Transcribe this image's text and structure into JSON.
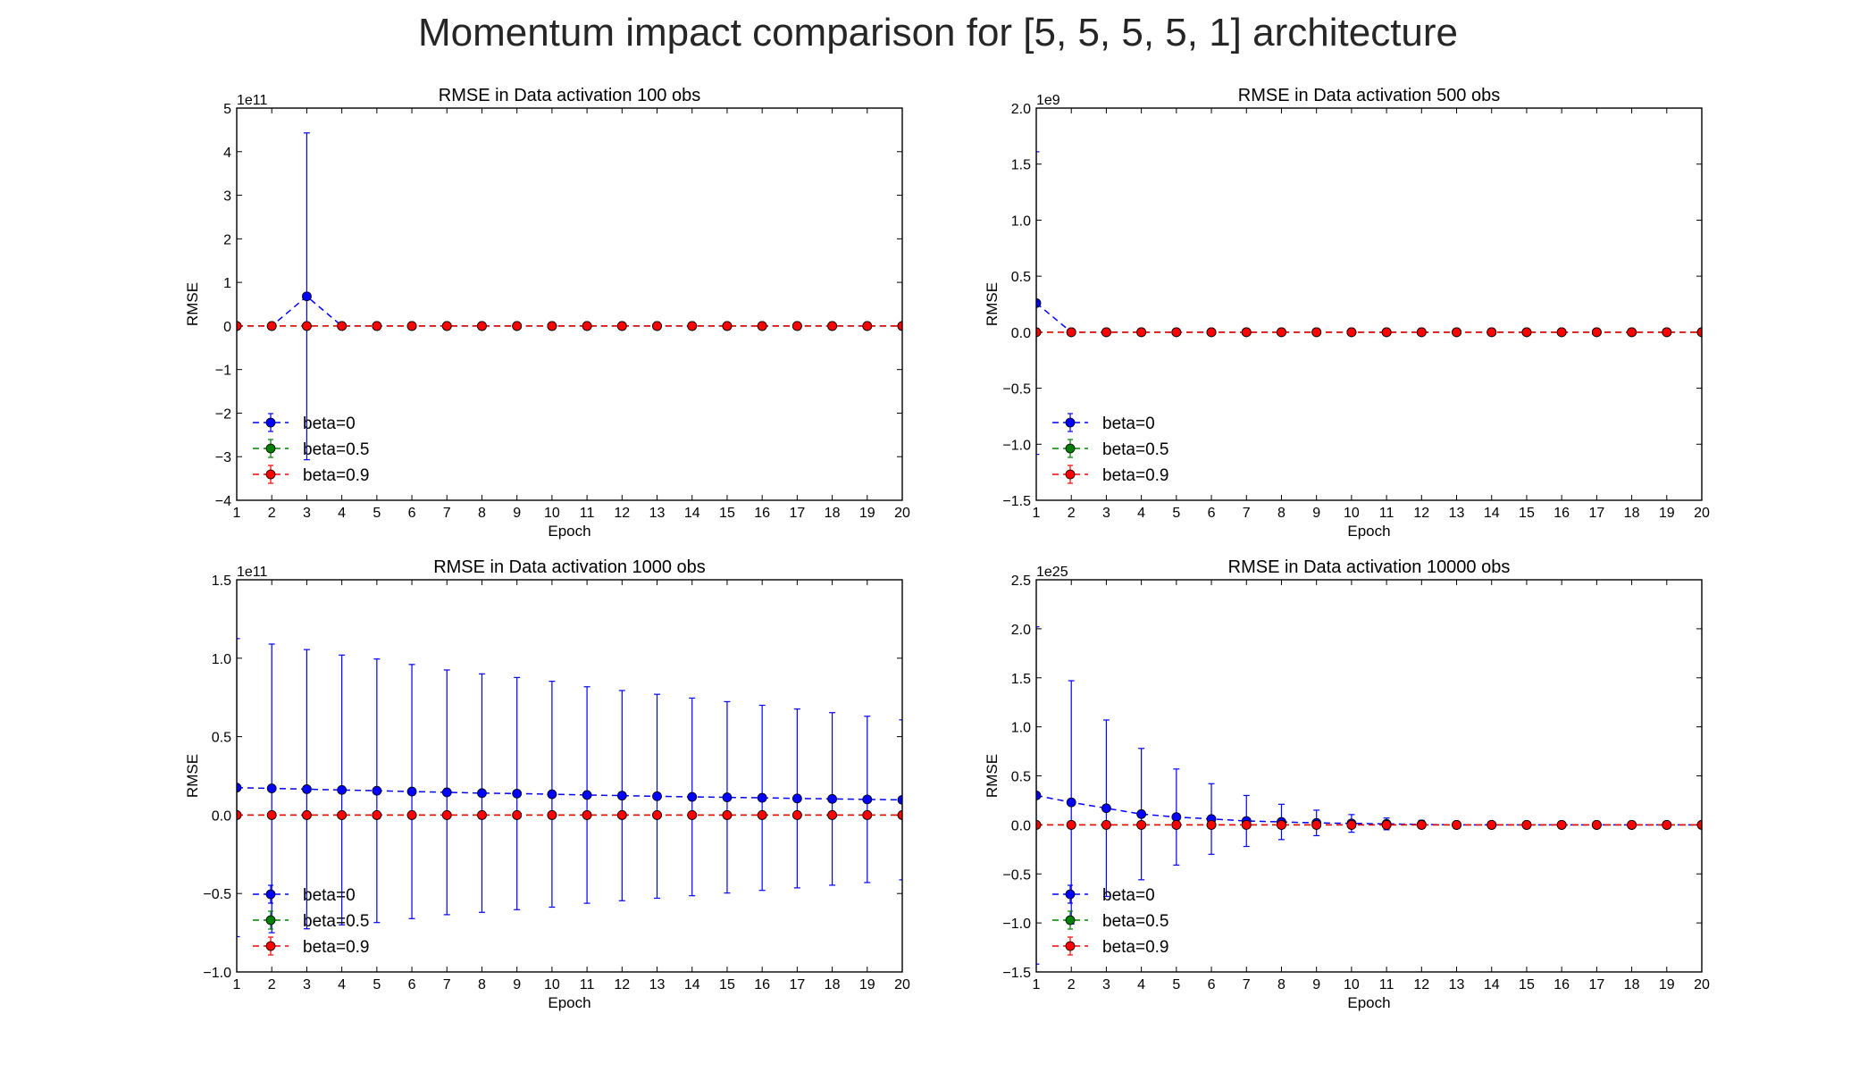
{
  "figure": {
    "title": "Momentum impact comparison for [5, 5, 5, 5, 1] architecture"
  },
  "colors": {
    "beta_0": "#0000ff",
    "beta_0_5": "#008000",
    "beta_0_9": "#ff0000",
    "frame": "#000000",
    "text": "#262626"
  },
  "chart_data": [
    {
      "type": "line",
      "title": "RMSE in Data activation 100 obs",
      "xlabel": "Epoch",
      "ylabel": "RMSE",
      "offset_text": "1e11",
      "x": [
        1,
        2,
        3,
        4,
        5,
        6,
        7,
        8,
        9,
        10,
        11,
        12,
        13,
        14,
        15,
        16,
        17,
        18,
        19,
        20
      ],
      "xlim": [
        1,
        20
      ],
      "ylim": [
        -4,
        5
      ],
      "yticks": [
        -4,
        -3,
        -2,
        -1,
        0,
        1,
        2,
        3,
        4,
        5
      ],
      "ytick_labels": [
        "−4",
        "−3",
        "−2",
        "−1",
        "0",
        "1",
        "2",
        "3",
        "4",
        "5"
      ],
      "grid": false,
      "legend_position": "lower-left",
      "series": [
        {
          "name": "beta=0",
          "color": "#0000ff",
          "values": [
            0,
            0,
            0.68,
            0,
            0,
            0,
            0,
            0,
            0,
            0,
            0,
            0,
            0,
            0,
            0,
            0,
            0,
            0,
            0,
            0
          ],
          "errors": [
            0,
            0,
            3.75,
            0,
            0,
            0,
            0,
            0,
            0,
            0,
            0,
            0,
            0,
            0,
            0,
            0,
            0,
            0,
            0,
            0
          ]
        },
        {
          "name": "beta=0.5",
          "color": "#008000",
          "values": [
            0,
            0,
            0,
            0,
            0,
            0,
            0,
            0,
            0,
            0,
            0,
            0,
            0,
            0,
            0,
            0,
            0,
            0,
            0,
            0
          ],
          "errors": [
            0,
            0,
            0,
            0,
            0,
            0,
            0,
            0,
            0,
            0,
            0,
            0,
            0,
            0,
            0,
            0,
            0,
            0,
            0,
            0
          ]
        },
        {
          "name": "beta=0.9",
          "color": "#ff0000",
          "values": [
            0,
            0,
            0,
            0,
            0,
            0,
            0,
            0,
            0,
            0,
            0,
            0,
            0,
            0,
            0,
            0,
            0,
            0,
            0,
            0
          ],
          "errors": [
            0,
            0,
            0,
            0,
            0,
            0,
            0,
            0,
            0,
            0,
            0,
            0,
            0,
            0,
            0,
            0,
            0,
            0,
            0,
            0
          ]
        }
      ]
    },
    {
      "type": "line",
      "title": "RMSE in Data activation 500 obs",
      "xlabel": "Epoch",
      "ylabel": "RMSE",
      "offset_text": "1e9",
      "x": [
        1,
        2,
        3,
        4,
        5,
        6,
        7,
        8,
        9,
        10,
        11,
        12,
        13,
        14,
        15,
        16,
        17,
        18,
        19,
        20
      ],
      "xlim": [
        1,
        20
      ],
      "ylim": [
        -1.5,
        2.0
      ],
      "yticks": [
        -1.5,
        -1.0,
        -0.5,
        0.0,
        0.5,
        1.0,
        1.5,
        2.0
      ],
      "ytick_labels": [
        "−1.5",
        "−1.0",
        "−0.5",
        "0.0",
        "0.5",
        "1.0",
        "1.5",
        "2.0"
      ],
      "grid": false,
      "legend_position": "lower-left",
      "series": [
        {
          "name": "beta=0",
          "color": "#0000ff",
          "values": [
            0.26,
            0,
            0,
            0,
            0,
            0,
            0,
            0,
            0,
            0,
            0,
            0,
            0,
            0,
            0,
            0,
            0,
            0,
            0,
            0
          ],
          "errors": [
            1.35,
            0,
            0,
            0,
            0,
            0,
            0,
            0,
            0,
            0,
            0,
            0,
            0,
            0,
            0,
            0,
            0,
            0,
            0,
            0
          ]
        },
        {
          "name": "beta=0.5",
          "color": "#008000",
          "values": [
            0,
            0,
            0,
            0,
            0,
            0,
            0,
            0,
            0,
            0,
            0,
            0,
            0,
            0,
            0,
            0,
            0,
            0,
            0,
            0
          ],
          "errors": [
            0,
            0,
            0,
            0,
            0,
            0,
            0,
            0,
            0,
            0,
            0,
            0,
            0,
            0,
            0,
            0,
            0,
            0,
            0,
            0
          ]
        },
        {
          "name": "beta=0.9",
          "color": "#ff0000",
          "values": [
            0,
            0,
            0,
            0,
            0,
            0,
            0,
            0,
            0,
            0,
            0,
            0,
            0,
            0,
            0,
            0,
            0,
            0,
            0,
            0
          ],
          "errors": [
            0,
            0,
            0,
            0,
            0,
            0,
            0,
            0,
            0,
            0,
            0,
            0,
            0,
            0,
            0,
            0,
            0,
            0,
            0,
            0
          ]
        }
      ]
    },
    {
      "type": "line",
      "title": "RMSE in Data activation 1000 obs",
      "xlabel": "Epoch",
      "ylabel": "RMSE",
      "offset_text": "1e11",
      "x": [
        1,
        2,
        3,
        4,
        5,
        6,
        7,
        8,
        9,
        10,
        11,
        12,
        13,
        14,
        15,
        16,
        17,
        18,
        19,
        20
      ],
      "xlim": [
        1,
        20
      ],
      "ylim": [
        -1.0,
        1.5
      ],
      "yticks": [
        -1.0,
        -0.5,
        0.0,
        0.5,
        1.0,
        1.5
      ],
      "ytick_labels": [
        "−1.0",
        "−0.5",
        "0.0",
        "0.5",
        "1.0",
        "1.5"
      ],
      "grid": false,
      "legend_position": "lower-left",
      "series": [
        {
          "name": "beta=0",
          "color": "#0000ff",
          "values": [
            0.175,
            0.17,
            0.165,
            0.16,
            0.155,
            0.15,
            0.145,
            0.14,
            0.137,
            0.133,
            0.128,
            0.124,
            0.12,
            0.116,
            0.113,
            0.11,
            0.106,
            0.103,
            0.1,
            0.097
          ],
          "errors": [
            0.95,
            0.92,
            0.89,
            0.86,
            0.84,
            0.81,
            0.78,
            0.76,
            0.74,
            0.72,
            0.69,
            0.67,
            0.65,
            0.63,
            0.61,
            0.59,
            0.57,
            0.55,
            0.53,
            0.51
          ]
        },
        {
          "name": "beta=0.5",
          "color": "#008000",
          "values": [
            0,
            0,
            0,
            0,
            0,
            0,
            0,
            0,
            0,
            0,
            0,
            0,
            0,
            0,
            0,
            0,
            0,
            0,
            0,
            0
          ],
          "errors": [
            0,
            0,
            0,
            0,
            0,
            0,
            0,
            0,
            0,
            0,
            0,
            0,
            0,
            0,
            0,
            0,
            0,
            0,
            0,
            0
          ]
        },
        {
          "name": "beta=0.9",
          "color": "#ff0000",
          "values": [
            0,
            0,
            0,
            0,
            0,
            0,
            0,
            0,
            0,
            0,
            0,
            0,
            0,
            0,
            0,
            0,
            0,
            0,
            0,
            0
          ],
          "errors": [
            0,
            0,
            0,
            0,
            0,
            0,
            0,
            0,
            0,
            0,
            0,
            0,
            0,
            0,
            0,
            0,
            0,
            0,
            0,
            0
          ]
        }
      ]
    },
    {
      "type": "line",
      "title": "RMSE in Data activation 10000 obs",
      "xlabel": "Epoch",
      "ylabel": "RMSE",
      "offset_text": "1e25",
      "x": [
        1,
        2,
        3,
        4,
        5,
        6,
        7,
        8,
        9,
        10,
        11,
        12,
        13,
        14,
        15,
        16,
        17,
        18,
        19,
        20
      ],
      "xlim": [
        1,
        20
      ],
      "ylim": [
        -1.5,
        2.5
      ],
      "yticks": [
        -1.5,
        -1.0,
        -0.5,
        0.0,
        0.5,
        1.0,
        1.5,
        2.0,
        2.5
      ],
      "ytick_labels": [
        "−1.5",
        "−1.0",
        "−0.5",
        "0.0",
        "0.5",
        "1.0",
        "1.5",
        "2.0",
        "2.5"
      ],
      "grid": false,
      "legend_position": "lower-left",
      "series": [
        {
          "name": "beta=0",
          "color": "#0000ff",
          "values": [
            0.3,
            0.23,
            0.17,
            0.11,
            0.08,
            0.06,
            0.04,
            0.03,
            0.02,
            0.015,
            0.01,
            0.005,
            0,
            0,
            0,
            0,
            0,
            0,
            0,
            0
          ],
          "errors": [
            1.72,
            1.24,
            0.9,
            0.67,
            0.49,
            0.36,
            0.26,
            0.18,
            0.13,
            0.09,
            0.06,
            0.04,
            0.02,
            0,
            0,
            0,
            0,
            0,
            0,
            0
          ]
        },
        {
          "name": "beta=0.5",
          "color": "#008000",
          "values": [
            0,
            0,
            0,
            0,
            0,
            0,
            0,
            0,
            0,
            0,
            0,
            0,
            0,
            0,
            0,
            0,
            0,
            0,
            0,
            0
          ],
          "errors": [
            0,
            0,
            0,
            0,
            0,
            0,
            0,
            0,
            0,
            0,
            0,
            0,
            0,
            0,
            0,
            0,
            0,
            0,
            0,
            0
          ]
        },
        {
          "name": "beta=0.9",
          "color": "#ff0000",
          "values": [
            0,
            0,
            0,
            0,
            0,
            0,
            0,
            0,
            0,
            0,
            0,
            0,
            0,
            0,
            0,
            0,
            0,
            0,
            0,
            0
          ],
          "errors": [
            0,
            0,
            0,
            0,
            0,
            0,
            0,
            0,
            0,
            0,
            0,
            0,
            0,
            0,
            0,
            0,
            0,
            0,
            0,
            0
          ]
        }
      ]
    }
  ]
}
